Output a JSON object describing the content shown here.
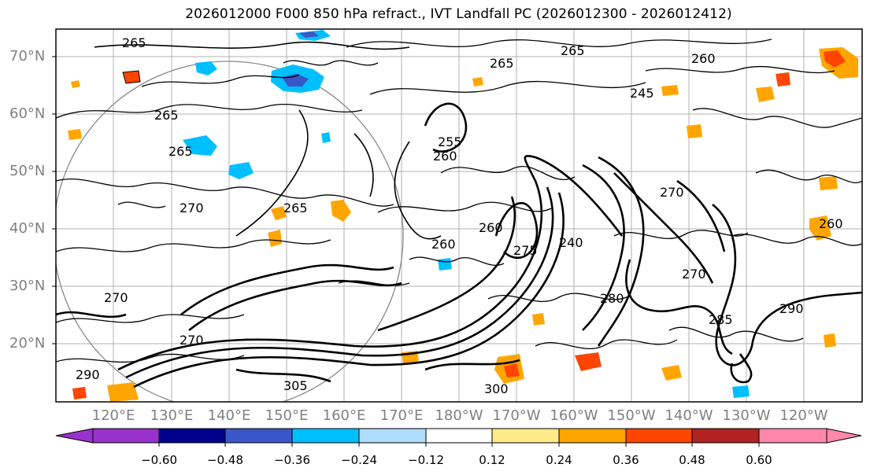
{
  "title": "2026012000 F000 850 hPa refract., IVT Landfall PC (2026012300 - 2026012412)",
  "map": {
    "lat_labels": [
      "70°N",
      "60°N",
      "50°N",
      "40°N",
      "30°N",
      "20°N"
    ],
    "lon_labels": [
      "120°E",
      "130°E",
      "140°E",
      "150°E",
      "160°E",
      "170°E",
      "180°W",
      "170°W",
      "160°W",
      "150°W",
      "140°W",
      "130°W",
      "120°W"
    ],
    "contour_labels": [
      "265",
      "265",
      "260",
      "265",
      "265",
      "255",
      "260",
      "260",
      "270",
      "240",
      "265",
      "270",
      "270",
      "260",
      "245",
      "270",
      "275",
      "260",
      "280",
      "285",
      "290",
      "300",
      "305",
      "290",
      "270",
      "265"
    ]
  },
  "colorbar": {
    "ticks": [
      "−0.60",
      "−0.48",
      "−0.36",
      "−0.24",
      "−0.12",
      "0.12",
      "0.24",
      "0.36",
      "0.48",
      "0.60"
    ],
    "colors": [
      "#9932CC",
      "#00008B",
      "#3A57C8",
      "#00BFFF",
      "#ADDDFB",
      "#FFFFFF",
      "#FFEA8A",
      "#FFA500",
      "#FF4500",
      "#B22222",
      "#FF88AA"
    ]
  }
}
